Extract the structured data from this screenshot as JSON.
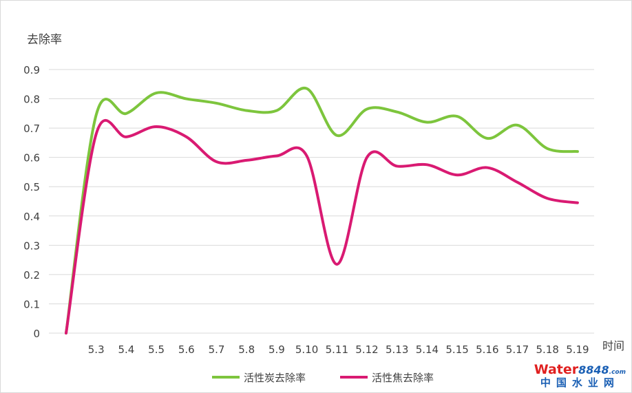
{
  "chart_data": {
    "type": "line",
    "title": "",
    "ylabel": "去除率",
    "xlabel": "时间",
    "ylim": [
      0,
      0.9
    ],
    "yticks": [
      "0",
      "0.1",
      "0.2",
      "0.3",
      "0.4",
      "0.5",
      "0.6",
      "0.7",
      "0.8",
      "0.9"
    ],
    "categories": [
      "",
      "5.3",
      "5.4",
      "5.5",
      "5.6",
      "5.7",
      "5.8",
      "5.9",
      "5.10",
      "5.11",
      "5.12",
      "5.13",
      "5.14",
      "5.15",
      "5.16",
      "5.17",
      "5.18",
      "5.19"
    ],
    "grid": true,
    "smooth": true,
    "legend_position": "bottom",
    "series": [
      {
        "name": "活性炭去除率",
        "color": "#7dc53d",
        "values": [
          0,
          0.745,
          0.75,
          0.82,
          0.8,
          0.785,
          0.76,
          0.76,
          0.835,
          0.675,
          0.765,
          0.755,
          0.72,
          0.74,
          0.665,
          0.71,
          0.63,
          0.62
        ]
      },
      {
        "name": "活性焦去除率",
        "color": "#d91a72",
        "values": [
          0,
          0.68,
          0.67,
          0.705,
          0.67,
          0.585,
          0.59,
          0.605,
          0.605,
          0.235,
          0.6,
          0.57,
          0.575,
          0.54,
          0.565,
          0.515,
          0.46,
          0.445
        ]
      }
    ]
  },
  "watermark": {
    "brand": "Water",
    "number": "8848",
    "suffix": ".com",
    "subtitle": "中国水业网"
  }
}
